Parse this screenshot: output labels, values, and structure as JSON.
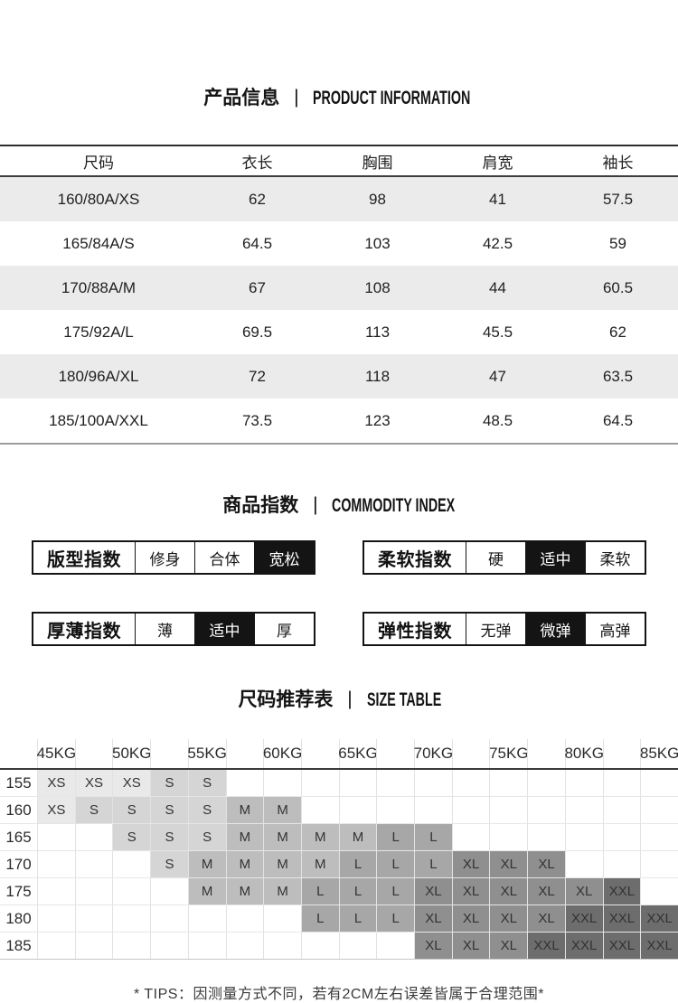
{
  "page": {
    "bg_color": "#ffffff",
    "accent_black": "#141414"
  },
  "product_info": {
    "title_zh": "产品信息",
    "title_divider": "|",
    "title_en": "PRODUCT INFORMATION",
    "columns": [
      "尺码",
      "衣长",
      "胸围",
      "肩宽",
      "袖长"
    ],
    "rows": [
      {
        "size": "160/80A/XS",
        "values": [
          "62",
          "98",
          "41",
          "57.5"
        ]
      },
      {
        "size": "165/84A/S",
        "values": [
          "64.5",
          "103",
          "42.5",
          "59"
        ]
      },
      {
        "size": "170/88A/M",
        "values": [
          "67",
          "108",
          "44",
          "60.5"
        ]
      },
      {
        "size": "175/92A/L",
        "values": [
          "69.5",
          "113",
          "45.5",
          "62"
        ]
      },
      {
        "size": "180/96A/XL",
        "values": [
          "72",
          "118",
          "47",
          "63.5"
        ]
      },
      {
        "size": "185/100A/XXL",
        "values": [
          "73.5",
          "123",
          "48.5",
          "64.5"
        ]
      }
    ],
    "stripe_color": "#ebebeb"
  },
  "commodity_index": {
    "title_zh": "商品指数",
    "title_divider": "|",
    "title_en": "COMMODITY INDEX",
    "indexes": [
      {
        "key": "fit",
        "label": "版型指数",
        "options": [
          "修身",
          "合体",
          "宽松"
        ],
        "selected_index": 2,
        "selected_option": "宽松"
      },
      {
        "key": "softness",
        "label": "柔软指数",
        "options": [
          "硬",
          "适中",
          "柔软"
        ],
        "selected_index": 1,
        "selected_option": "适中"
      },
      {
        "key": "thickness",
        "label": "厚薄指数",
        "options": [
          "薄",
          "适中",
          "厚"
        ],
        "selected_index": 1,
        "selected_option": "适中"
      },
      {
        "key": "elasticity",
        "label": "弹性指数",
        "options": [
          "无弹",
          "微弹",
          "高弹"
        ],
        "selected_index": 1,
        "selected_option": "微弹"
      }
    ]
  },
  "size_table": {
    "title_zh": "尺码推荐表",
    "title_divider": "|",
    "title_en": "SIZE TABLE",
    "weight_headers": [
      "45KG",
      "50KG",
      "55KG",
      "60KG",
      "65KG",
      "70KG",
      "75KG",
      "80KG",
      "85KG"
    ],
    "data_columns": 17,
    "size_colors": {
      "XS": "#e9e9e9",
      "S": "#d5d5d5",
      "M": "#bdbdbd",
      "L": "#a7a7a7",
      "XL": "#8f8f8f",
      "XXL": "#6d6d6d"
    },
    "rows": [
      {
        "height": "155",
        "cells": [
          "XS",
          "XS",
          "XS",
          "S",
          "S",
          "",
          "",
          "",
          "",
          "",
          "",
          "",
          "",
          "",
          "",
          "",
          ""
        ]
      },
      {
        "height": "160",
        "cells": [
          "XS",
          "S",
          "S",
          "S",
          "S",
          "M",
          "M",
          "",
          "",
          "",
          "",
          "",
          "",
          "",
          "",
          "",
          ""
        ]
      },
      {
        "height": "165",
        "cells": [
          "",
          "",
          "S",
          "S",
          "S",
          "M",
          "M",
          "M",
          "M",
          "L",
          "L",
          "",
          "",
          "",
          "",
          "",
          ""
        ]
      },
      {
        "height": "170",
        "cells": [
          "",
          "",
          "",
          "S",
          "M",
          "M",
          "M",
          "M",
          "L",
          "L",
          "L",
          "XL",
          "XL",
          "XL",
          "",
          "",
          ""
        ]
      },
      {
        "height": "175",
        "cells": [
          "",
          "",
          "",
          "",
          "M",
          "M",
          "M",
          "L",
          "L",
          "L",
          "XL",
          "XL",
          "XL",
          "XL",
          "XL",
          "XXL",
          ""
        ]
      },
      {
        "height": "180",
        "cells": [
          "",
          "",
          "",
          "",
          "",
          "",
          "",
          "L",
          "L",
          "L",
          "XL",
          "XL",
          "XL",
          "XL",
          "XXL",
          "XXL",
          "XXL"
        ]
      },
      {
        "height": "185",
        "cells": [
          "",
          "",
          "",
          "",
          "",
          "",
          "",
          "",
          "",
          "",
          "XL",
          "XL",
          "XL",
          "XXL",
          "XXL",
          "XXL",
          "XXL"
        ]
      }
    ]
  },
  "tips": {
    "text": "* TIPS：因测量方式不同，若有2CM左右误差皆属于合理范围*"
  }
}
